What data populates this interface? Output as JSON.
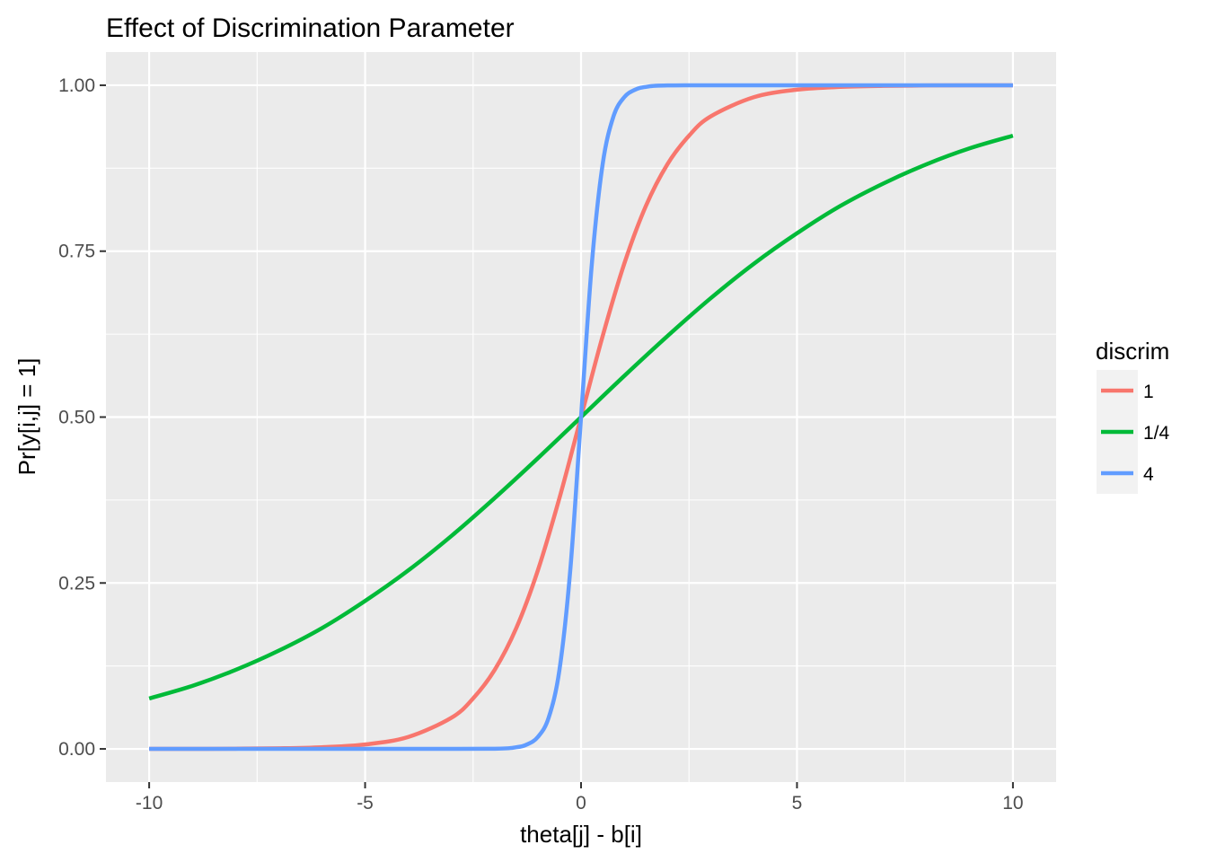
{
  "chart_data": {
    "type": "line",
    "title": "Effect of Discrimination Parameter",
    "xlabel": "theta[j] - b[i]",
    "ylabel": "Pr[y[i,j] = 1]",
    "xlim": [
      -11,
      11
    ],
    "ylim": [
      -0.05,
      1.05
    ],
    "x_ticks": [
      -10,
      -5,
      0,
      5,
      10
    ],
    "x_tick_labels": [
      "-10",
      "-5",
      "0",
      "5",
      "10"
    ],
    "y_ticks": [
      0,
      0.25,
      0.5,
      0.75,
      1
    ],
    "y_tick_labels": [
      "0.00",
      "0.25",
      "0.50",
      "0.75",
      "1.00"
    ],
    "grid": true,
    "legend": {
      "title": "discrim",
      "position": "right"
    },
    "series": [
      {
        "name": "1",
        "color": "#F8766D",
        "x": [
          -10,
          -9,
          -8,
          -7,
          -6,
          -5,
          -4,
          -3,
          -2.5,
          -2,
          -1.5,
          -1,
          -0.5,
          0,
          0.5,
          1,
          1.5,
          2,
          2.5,
          3,
          4,
          5,
          6,
          7,
          8,
          9,
          10
        ],
        "y": [
          0.0,
          0.0001,
          0.0003,
          0.0009,
          0.0025,
          0.0067,
          0.018,
          0.047,
          0.076,
          0.119,
          0.182,
          0.269,
          0.378,
          0.5,
          0.622,
          0.731,
          0.818,
          0.881,
          0.924,
          0.953,
          0.982,
          0.9933,
          0.9975,
          0.9991,
          0.9997,
          0.9999,
          1.0
        ]
      },
      {
        "name": "1/4",
        "color": "#00BA38",
        "x": [
          -10,
          -9,
          -8,
          -7,
          -6,
          -5,
          -4,
          -3,
          -2,
          -1,
          0,
          1,
          2,
          3,
          4,
          5,
          6,
          7,
          8,
          9,
          10
        ],
        "y": [
          0.076,
          0.095,
          0.119,
          0.148,
          0.182,
          0.223,
          0.269,
          0.321,
          0.378,
          0.438,
          0.5,
          0.562,
          0.622,
          0.679,
          0.731,
          0.777,
          0.818,
          0.852,
          0.881,
          0.905,
          0.924
        ]
      },
      {
        "name": "4",
        "color": "#619CFF",
        "x": [
          -10,
          -4,
          -2,
          -1.5,
          -1.25,
          -1,
          -0.75,
          -0.5,
          -0.25,
          0,
          0.25,
          0.5,
          0.75,
          1,
          1.25,
          1.5,
          2,
          4,
          10
        ],
        "y": [
          0.0,
          0.0,
          0.0003,
          0.0025,
          0.0067,
          0.018,
          0.047,
          0.119,
          0.269,
          0.5,
          0.731,
          0.881,
          0.953,
          0.982,
          0.9933,
          0.9975,
          0.9997,
          1.0,
          1.0
        ]
      }
    ]
  }
}
